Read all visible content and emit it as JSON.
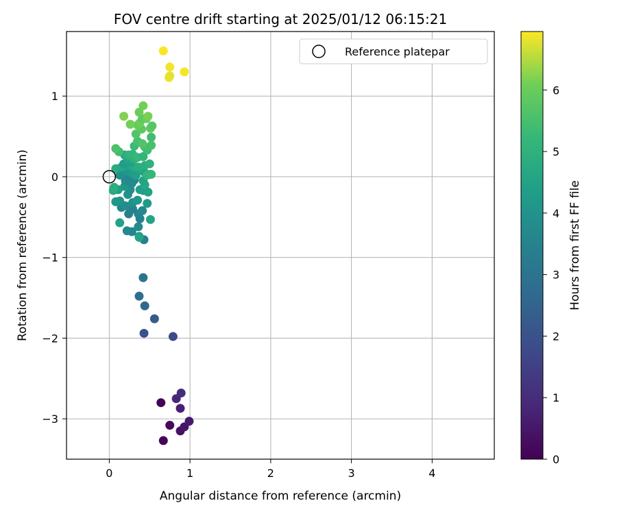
{
  "chart_data": {
    "type": "scatter",
    "title": "FOV centre drift starting at 2025/01/12 06:15:21",
    "xlabel": "Angular distance from reference (arcmin)",
    "ylabel": "Rotation from reference (arcmin)",
    "xlim": [
      -0.53,
      4.77
    ],
    "ylim": [
      -3.5,
      1.8
    ],
    "xticks": [
      0,
      1,
      2,
      3,
      4
    ],
    "yticks": [
      -3,
      -2,
      -1,
      0,
      1
    ],
    "grid": true,
    "legend": {
      "position": "top-right",
      "label": "Reference platepar"
    },
    "reference_point": {
      "x": 0,
      "y": 0
    },
    "colorbar": {
      "label": "Hours from first FF file",
      "colormap": "viridis",
      "range": [
        0,
        6.95
      ],
      "ticks": [
        0,
        1,
        2,
        3,
        4,
        5,
        6
      ]
    },
    "points": [
      {
        "x": 0.64,
        "y": -2.8,
        "c": 0.05
      },
      {
        "x": 0.67,
        "y": -3.27,
        "c": 0.1
      },
      {
        "x": 0.75,
        "y": -3.08,
        "c": 0.2
      },
      {
        "x": 0.88,
        "y": -3.15,
        "c": 0.35
      },
      {
        "x": 0.93,
        "y": -3.1,
        "c": 0.45
      },
      {
        "x": 0.99,
        "y": -3.03,
        "c": 0.55
      },
      {
        "x": 0.88,
        "y": -2.87,
        "c": 0.7
      },
      {
        "x": 0.83,
        "y": -2.75,
        "c": 0.85
      },
      {
        "x": 0.89,
        "y": -2.68,
        "c": 1.0
      },
      {
        "x": 0.79,
        "y": -1.98,
        "c": 1.8
      },
      {
        "x": 0.43,
        "y": -1.94,
        "c": 2.0
      },
      {
        "x": 0.56,
        "y": -1.76,
        "c": 2.2
      },
      {
        "x": 0.44,
        "y": -1.6,
        "c": 2.6
      },
      {
        "x": 0.37,
        "y": -1.48,
        "c": 2.8
      },
      {
        "x": 0.42,
        "y": -1.25,
        "c": 3.0
      },
      {
        "x": 0.43,
        "y": -0.78,
        "c": 3.4
      },
      {
        "x": 0.37,
        "y": -0.74,
        "c": 3.5
      },
      {
        "x": 0.28,
        "y": -0.68,
        "c": 3.6
      },
      {
        "x": 0.22,
        "y": -0.67,
        "c": 3.65
      },
      {
        "x": 0.36,
        "y": -0.62,
        "c": 3.75
      },
      {
        "x": 0.38,
        "y": -0.52,
        "c": 3.45
      },
      {
        "x": 0.36,
        "y": -0.46,
        "c": 3.55
      },
      {
        "x": 0.41,
        "y": -0.42,
        "c": 3.7
      },
      {
        "x": 0.29,
        "y": -0.4,
        "c": 3.5
      },
      {
        "x": 0.24,
        "y": -0.46,
        "c": 3.4
      },
      {
        "x": 0.15,
        "y": -0.38,
        "c": 3.6
      },
      {
        "x": 0.2,
        "y": -0.36,
        "c": 3.8
      },
      {
        "x": 0.29,
        "y": -0.32,
        "c": 3.9
      },
      {
        "x": 0.13,
        "y": -0.3,
        "c": 4.0
      },
      {
        "x": 0.08,
        "y": -0.31,
        "c": 4.1
      },
      {
        "x": 0.35,
        "y": -0.29,
        "c": 4.2
      },
      {
        "x": 0.47,
        "y": -0.33,
        "c": 4.25
      },
      {
        "x": 0.51,
        "y": -0.53,
        "c": 4.55
      },
      {
        "x": 0.13,
        "y": -0.57,
        "c": 4.5
      },
      {
        "x": 0.37,
        "y": -0.75,
        "c": 4.6
      },
      {
        "x": 0.42,
        "y": -0.17,
        "c": 4.3
      },
      {
        "x": 0.48,
        "y": -0.19,
        "c": 4.45
      },
      {
        "x": 0.38,
        "y": -0.16,
        "c": 4.4
      },
      {
        "x": 0.44,
        "y": -0.1,
        "c": 4.65
      },
      {
        "x": 0.42,
        "y": -0.05,
        "c": 4.55
      },
      {
        "x": 0.23,
        "y": -0.22,
        "c": 3.95
      },
      {
        "x": 0.26,
        "y": -0.16,
        "c": 3.85
      },
      {
        "x": 0.19,
        "y": -0.12,
        "c": 4.15
      },
      {
        "x": 0.11,
        "y": -0.16,
        "c": 4.35
      },
      {
        "x": 0.05,
        "y": -0.17,
        "c": 4.7
      },
      {
        "x": 0.06,
        "y": -0.13,
        "c": 4.85
      },
      {
        "x": 0.28,
        "y": -0.08,
        "c": 3.75
      },
      {
        "x": 0.2,
        "y": -0.05,
        "c": 3.8
      },
      {
        "x": 0.31,
        "y": -0.04,
        "c": 3.7
      },
      {
        "x": 0.25,
        "y": 0.0,
        "c": 3.6
      },
      {
        "x": 0.13,
        "y": 0.02,
        "c": 3.85
      },
      {
        "x": 0.17,
        "y": 0.05,
        "c": 3.95
      },
      {
        "x": 0.22,
        "y": 0.08,
        "c": 4.1
      },
      {
        "x": 0.28,
        "y": 0.04,
        "c": 4.25
      },
      {
        "x": 0.33,
        "y": 0.02,
        "c": 4.4
      },
      {
        "x": 0.38,
        "y": 0.08,
        "c": 4.5
      },
      {
        "x": 0.43,
        "y": 0.06,
        "c": 4.6
      },
      {
        "x": 0.5,
        "y": 0.03,
        "c": 5.0
      },
      {
        "x": 0.47,
        "y": 0.02,
        "c": 5.1
      },
      {
        "x": 0.52,
        "y": 0.03,
        "c": 5.2
      },
      {
        "x": 0.08,
        "y": 0.1,
        "c": 4.8
      },
      {
        "x": 0.15,
        "y": 0.12,
        "c": 4.65
      },
      {
        "x": 0.23,
        "y": 0.14,
        "c": 4.55
      },
      {
        "x": 0.3,
        "y": 0.12,
        "c": 4.75
      },
      {
        "x": 0.36,
        "y": 0.12,
        "c": 4.85
      },
      {
        "x": 0.44,
        "y": 0.14,
        "c": 4.9
      },
      {
        "x": 0.18,
        "y": 0.16,
        "c": 4.3
      },
      {
        "x": 0.27,
        "y": 0.18,
        "c": 4.45
      },
      {
        "x": 0.23,
        "y": 0.22,
        "c": 4.6
      },
      {
        "x": 0.31,
        "y": 0.22,
        "c": 4.95
      },
      {
        "x": 0.5,
        "y": 0.16,
        "c": 5.0
      },
      {
        "x": 0.19,
        "y": 0.27,
        "c": 4.7
      },
      {
        "x": 0.24,
        "y": 0.27,
        "c": 5.05
      },
      {
        "x": 0.29,
        "y": 0.28,
        "c": 5.15
      },
      {
        "x": 0.35,
        "y": 0.24,
        "c": 5.25
      },
      {
        "x": 0.42,
        "y": 0.25,
        "c": 5.1
      },
      {
        "x": 0.12,
        "y": 0.31,
        "c": 5.4
      },
      {
        "x": 0.08,
        "y": 0.35,
        "c": 5.6
      },
      {
        "x": 0.47,
        "y": 0.33,
        "c": 5.35
      },
      {
        "x": 0.52,
        "y": 0.39,
        "c": 5.55
      },
      {
        "x": 0.44,
        "y": 0.37,
        "c": 5.45
      },
      {
        "x": 0.31,
        "y": 0.38,
        "c": 5.3
      },
      {
        "x": 0.35,
        "y": 0.44,
        "c": 5.5
      },
      {
        "x": 0.41,
        "y": 0.41,
        "c": 5.65
      },
      {
        "x": 0.52,
        "y": 0.49,
        "c": 5.4
      },
      {
        "x": 0.33,
        "y": 0.53,
        "c": 5.7
      },
      {
        "x": 0.4,
        "y": 0.59,
        "c": 5.8
      },
      {
        "x": 0.51,
        "y": 0.6,
        "c": 5.9
      },
      {
        "x": 0.53,
        "y": 0.63,
        "c": 5.75
      },
      {
        "x": 0.35,
        "y": 0.64,
        "c": 5.95
      },
      {
        "x": 0.38,
        "y": 0.67,
        "c": 6.05
      },
      {
        "x": 0.26,
        "y": 0.65,
        "c": 6.1
      },
      {
        "x": 0.41,
        "y": 0.72,
        "c": 5.85
      },
      {
        "x": 0.46,
        "y": 0.72,
        "c": 6.0
      },
      {
        "x": 0.48,
        "y": 0.75,
        "c": 6.15
      },
      {
        "x": 0.18,
        "y": 0.75,
        "c": 6.2
      },
      {
        "x": 0.37,
        "y": 0.8,
        "c": 6.0
      },
      {
        "x": 0.42,
        "y": 0.88,
        "c": 6.1
      },
      {
        "x": 0.74,
        "y": 1.23,
        "c": 6.85
      },
      {
        "x": 0.75,
        "y": 1.25,
        "c": 6.8
      },
      {
        "x": 0.93,
        "y": 1.3,
        "c": 6.9
      },
      {
        "x": 0.75,
        "y": 1.36,
        "c": 6.88
      },
      {
        "x": 0.67,
        "y": 1.56,
        "c": 6.92
      }
    ]
  }
}
